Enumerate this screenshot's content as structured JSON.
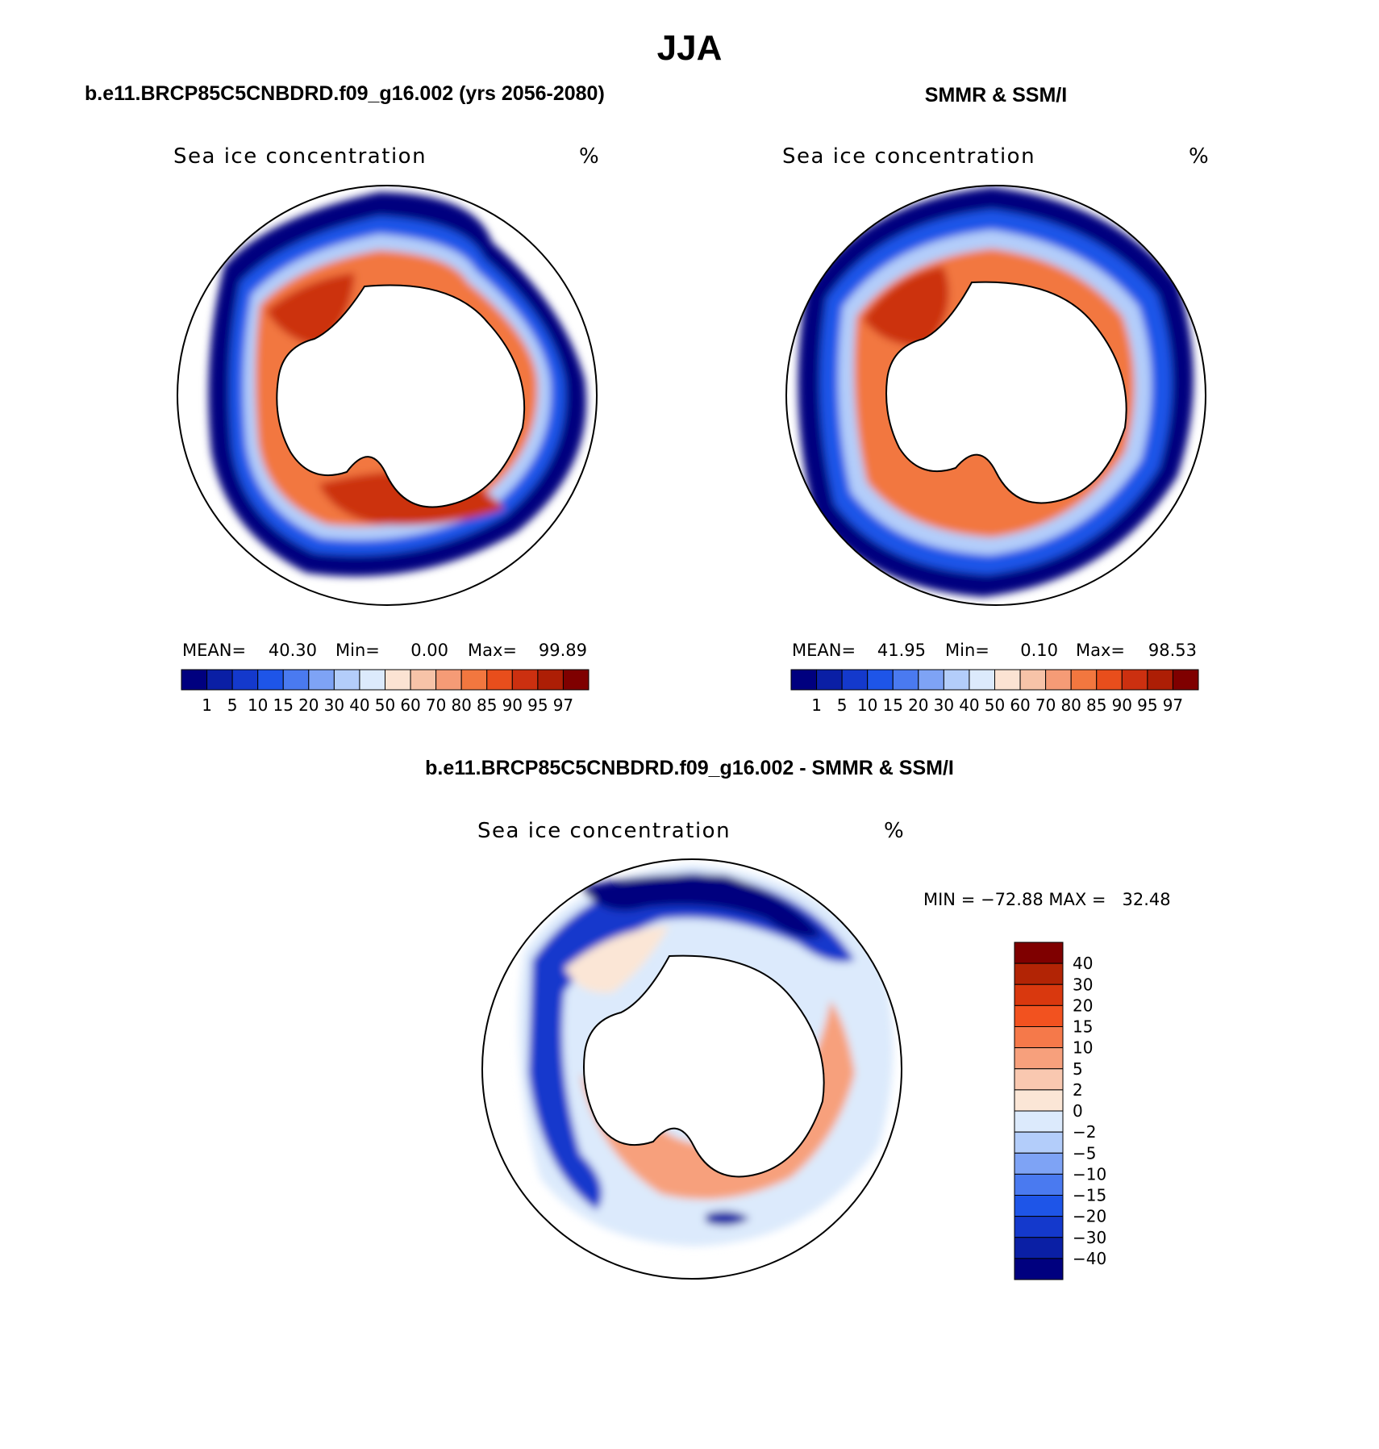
{
  "main_title": "JJA",
  "panels": [
    {
      "id": "model",
      "header": "b.e11.BRCP85C5CNBDRD.f09_g16.002 (yrs 2056-2080)",
      "variable": "Sea ice concentration",
      "units": "%",
      "stats": {
        "mean_label": "MEAN=",
        "mean": "40.30",
        "min_label": "Min=",
        "min": "0.00",
        "max_label": "Max=",
        "max": "99.89"
      }
    },
    {
      "id": "obs",
      "header": "SMMR & SSM/I",
      "variable": "Sea ice concentration",
      "units": "%",
      "stats": {
        "mean_label": "MEAN=",
        "mean": "41.95",
        "min_label": "Min=",
        "min": "0.10",
        "max_label": "Max=",
        "max": "98.53"
      }
    },
    {
      "id": "diff",
      "header": "b.e11.BRCP85C5CNBDRD.f09_g16.002 - SMMR & SSM/I",
      "variable": "Sea ice concentration",
      "units": "%",
      "minmax": "MIN = −72.88 MAX =   32.48"
    }
  ],
  "concentration_colorbar": {
    "labels": [
      "1",
      "5",
      "10",
      "15",
      "20",
      "30",
      "40",
      "50",
      "60",
      "70",
      "80",
      "85",
      "90",
      "95",
      "97"
    ],
    "colors": [
      "#00007f",
      "#0a1fa5",
      "#1439cc",
      "#1e55e8",
      "#4a7af0",
      "#7ea3f5",
      "#b3cdfa",
      "#dceafc",
      "#fbe3d3",
      "#f7c3a8",
      "#f59b76",
      "#f2773f",
      "#e84e1c",
      "#cc3010",
      "#ad1e05",
      "#7f0000"
    ]
  },
  "difference_colorbar": {
    "labels": [
      "40",
      "30",
      "20",
      "15",
      "10",
      "5",
      "2",
      "0",
      "−2",
      "−5",
      "−10",
      "−15",
      "−20",
      "−30",
      "−40"
    ],
    "colors": [
      "#7f0000",
      "#b22405",
      "#d9380e",
      "#f2521f",
      "#f5794a",
      "#f7a07c",
      "#f9c8b0",
      "#fbe6d6",
      "#dceafc",
      "#b3cdfa",
      "#7ea3f5",
      "#4a7af0",
      "#1e55e8",
      "#1439cc",
      "#0a1fa5",
      "#00007f"
    ]
  },
  "map_colors": {
    "land": "#ffffff",
    "outline": "#000000"
  }
}
